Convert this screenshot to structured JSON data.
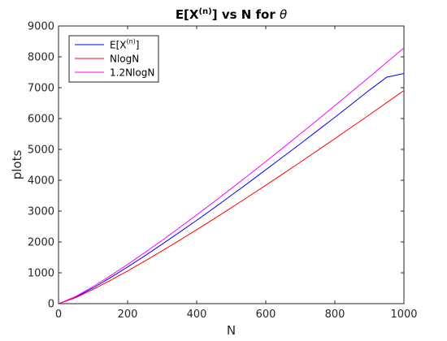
{
  "chart_data": {
    "type": "line",
    "title": "E[X^{(n)}] vs N for θ",
    "title_parts": {
      "main": "E[X",
      "sup": "(n)",
      "rest": "] vs N for ",
      "symbol": "θ"
    },
    "xlabel": "N",
    "ylabel": "plots",
    "xlim": [
      0,
      1000
    ],
    "ylim": [
      0,
      9000
    ],
    "xticks": [
      0,
      200,
      400,
      600,
      800,
      1000
    ],
    "yticks": [
      0,
      1000,
      2000,
      3000,
      4000,
      5000,
      6000,
      7000,
      8000,
      9000
    ],
    "grid": false,
    "legend_position": "top-left",
    "x": [
      1,
      50,
      100,
      150,
      200,
      250,
      300,
      350,
      400,
      450,
      500,
      550,
      600,
      650,
      700,
      750,
      800,
      850,
      900,
      950,
      1000
    ],
    "series": [
      {
        "name": "E[X^{(n)}]",
        "legend_parts": {
          "main": "E[X",
          "sup": "(n)",
          "rest": "]"
        },
        "color": "#0000ff",
        "values": [
          0,
          210,
          510,
          840,
          1190,
          1550,
          1930,
          2310,
          2700,
          3100,
          3510,
          3920,
          4340,
          4760,
          5180,
          5610,
          6040,
          6480,
          6920,
          7340,
          7460
        ]
      },
      {
        "name": "NlogN",
        "color": "#ff0000",
        "values": [
          0,
          196,
          461,
          752,
          1060,
          1380,
          1711,
          2051,
          2397,
          2749,
          3107,
          3470,
          3838,
          4209,
          4586,
          4965,
          5348,
          5734,
          6122,
          6515,
          6908
        ]
      },
      {
        "name": "1.2NlogN",
        "color": "#ff00ff",
        "values": [
          0,
          235,
          553,
          902,
          1272,
          1656,
          2053,
          2461,
          2876,
          3299,
          3729,
          4164,
          4606,
          5051,
          5503,
          5958,
          6418,
          6881,
          7346,
          7818,
          8290
        ]
      }
    ]
  }
}
